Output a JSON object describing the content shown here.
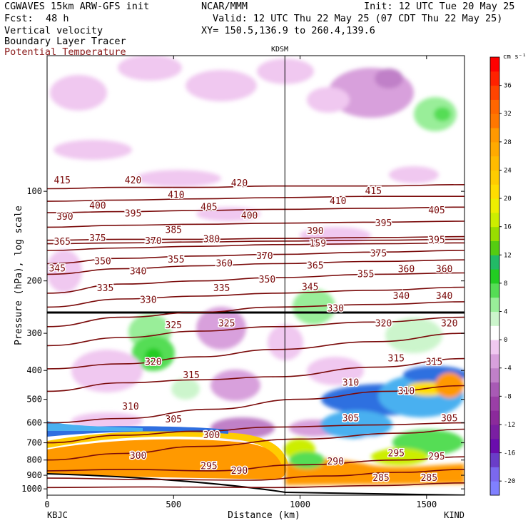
{
  "header": {
    "model": "CGWAVES 15km ARW-GFS init",
    "org": "NCAR/MMM",
    "init": "Init: 12 UTC Tue 20 May 25",
    "fcst_label": "Fcst:",
    "fcst_value": "48 h",
    "valid": "Valid: 12 UTC Thu 22 May 25 (07 CDT Thu 22 May 25)",
    "field1": "Vertical velocity",
    "xy": "XY= 150.5,136.9 to 260.4,139.6",
    "field2": "Boundary Layer Tracer",
    "field3": "Potential Temperature",
    "field3_color": "#8b1a1a",
    "station_mid": "KDSM",
    "station_left": "KBJC",
    "station_right": "KIND"
  },
  "chart_data": {
    "type": "heatmap",
    "title": "Vertical velocity / Boundary Layer Tracer / Potential Temperature cross-section",
    "xlabel": "Distance (km)",
    "ylabel": "Pressure (hPa), log scale",
    "xlim": [
      0,
      1650
    ],
    "ylim": [
      1050,
      35
    ],
    "x_ticks": [
      0,
      500,
      1000,
      1500
    ],
    "y_ticks": [
      100,
      200,
      300,
      400,
      500,
      600,
      700,
      800,
      900,
      1000
    ],
    "marker_line_x": 940,
    "colorbar": {
      "unit_label": "cm s⁻¹",
      "levels": [
        -22,
        -20,
        -18,
        -16,
        -14,
        -12,
        -10,
        -8,
        -6,
        -4,
        -2,
        2,
        4,
        6,
        8,
        10,
        12,
        14,
        16,
        18,
        20,
        22,
        24,
        26,
        28,
        30,
        32,
        34,
        36,
        38,
        40
      ],
      "colors": [
        "#8080ff",
        "#7b68ee",
        "#6a3dc8",
        "#6a0dad",
        "#7a1fa2",
        "#8b2a9b",
        "#9a3fa6",
        "#a85ab5",
        "#c080c8",
        "#d8a0dc",
        "#f0c8f0",
        "#ffffff",
        "#ccf5cc",
        "#99ee99",
        "#55dd55",
        "#22cc22",
        "#22bb66",
        "#55cc11",
        "#99dd00",
        "#ccee00",
        "#eeee00",
        "#ffdd00",
        "#ffcc00",
        "#ffbb00",
        "#ffaa00",
        "#ff9900",
        "#ff7700",
        "#ff6600",
        "#ff4400",
        "#ff2200",
        "#ff0000"
      ],
      "tick_labels": [
        "-20",
        "-16",
        "-12",
        "-8",
        "-4",
        "0",
        "4",
        "8",
        "12",
        "16",
        "20",
        "24",
        "28",
        "32",
        "36"
      ]
    },
    "theta_contours": [
      {
        "theta": 285,
        "points": [
          [
            0,
            990
          ],
          [
            400,
            985
          ],
          [
            900,
            990
          ],
          [
            1300,
            975
          ],
          [
            1650,
            955
          ]
        ]
      },
      {
        "theta": 290,
        "points": [
          [
            0,
            920
          ],
          [
            400,
            930
          ],
          [
            800,
            935
          ],
          [
            1100,
            905
          ],
          [
            1400,
            880
          ],
          [
            1650,
            860
          ]
        ]
      },
      {
        "theta": 295,
        "points": [
          [
            0,
            870
          ],
          [
            300,
            860
          ],
          [
            650,
            870
          ],
          [
            1000,
            830
          ],
          [
            1400,
            800
          ],
          [
            1650,
            780
          ]
        ]
      },
      {
        "theta": 300,
        "points": [
          [
            0,
            800
          ],
          [
            300,
            760
          ],
          [
            600,
            720
          ],
          [
            1000,
            680
          ],
          [
            1400,
            650
          ],
          [
            1650,
            630
          ]
        ]
      },
      {
        "theta": 305,
        "points": [
          [
            0,
            700
          ],
          [
            300,
            660
          ],
          [
            600,
            640
          ],
          [
            900,
            620
          ],
          [
            1300,
            610
          ],
          [
            1650,
            600
          ]
        ]
      },
      {
        "theta": 310,
        "points": [
          [
            0,
            600
          ],
          [
            300,
            580
          ],
          [
            650,
            540
          ],
          [
            1000,
            500
          ],
          [
            1350,
            470
          ],
          [
            1650,
            450
          ]
        ]
      },
      {
        "theta": 315,
        "points": [
          [
            0,
            470
          ],
          [
            300,
            440
          ],
          [
            600,
            430
          ],
          [
            900,
            420
          ],
          [
            1300,
            390
          ],
          [
            1650,
            365
          ]
        ]
      },
      {
        "theta": 320,
        "points": [
          [
            0,
            395
          ],
          [
            300,
            380
          ],
          [
            600,
            360
          ],
          [
            900,
            340
          ],
          [
            1300,
            320
          ],
          [
            1650,
            300
          ]
        ]
      },
      {
        "theta": 325,
        "points": [
          [
            0,
            330
          ],
          [
            300,
            310
          ],
          [
            600,
            295
          ],
          [
            900,
            285
          ],
          [
            1300,
            275
          ],
          [
            1650,
            265
          ]
        ]
      },
      {
        "theta": 330,
        "points": [
          [
            0,
            285
          ],
          [
            300,
            265
          ],
          [
            600,
            255
          ],
          [
            900,
            245
          ],
          [
            1300,
            240
          ],
          [
            1650,
            235
          ]
        ]
      },
      {
        "theta": 335,
        "points": [
          [
            0,
            245
          ],
          [
            300,
            230
          ],
          [
            600,
            225
          ],
          [
            900,
            220
          ],
          [
            1300,
            215
          ],
          [
            1650,
            210
          ]
        ]
      },
      {
        "theta": 340,
        "points": [
          [
            0,
            220
          ],
          [
            300,
            205
          ],
          [
            600,
            200
          ],
          [
            900,
            195
          ],
          [
            1300,
            190
          ],
          [
            1650,
            188
          ]
        ]
      },
      {
        "theta": 345,
        "points": [
          [
            0,
            190
          ],
          [
            300,
            182
          ],
          [
            600,
            178
          ],
          [
            900,
            175
          ],
          [
            1300,
            172
          ],
          [
            1650,
            170
          ]
        ]
      },
      {
        "theta": 350,
        "points": [
          [
            0,
            175
          ],
          [
            300,
            168
          ],
          [
            600,
            165
          ],
          [
            900,
            163
          ],
          [
            1300,
            160
          ],
          [
            1650,
            158
          ]
        ]
      },
      {
        "theta": 360,
        "points": [
          [
            0,
            158
          ],
          [
            300,
            155
          ],
          [
            600,
            153
          ],
          [
            900,
            151
          ],
          [
            1300,
            150
          ],
          [
            1650,
            149
          ]
        ]
      },
      {
        "theta": 370,
        "points": [
          [
            0,
            150
          ],
          [
            300,
            149
          ],
          [
            600,
            148
          ],
          [
            900,
            147
          ],
          [
            1300,
            146
          ],
          [
            1650,
            145
          ]
        ]
      },
      {
        "theta": 380,
        "points": [
          [
            0,
            146
          ],
          [
            300,
            145
          ],
          [
            600,
            145
          ],
          [
            900,
            144
          ],
          [
            1300,
            143
          ],
          [
            1650,
            142
          ]
        ]
      },
      {
        "theta": 390,
        "points": [
          [
            0,
            132
          ],
          [
            300,
            130
          ],
          [
            600,
            129
          ],
          [
            900,
            128
          ],
          [
            1300,
            127
          ],
          [
            1650,
            126
          ]
        ]
      },
      {
        "theta": 400,
        "points": [
          [
            0,
            118
          ],
          [
            300,
            117
          ],
          [
            600,
            116
          ],
          [
            900,
            115
          ],
          [
            1300,
            114
          ],
          [
            1650,
            113
          ]
        ]
      },
      {
        "theta": 410,
        "points": [
          [
            0,
            108
          ],
          [
            300,
            107
          ],
          [
            600,
            106
          ],
          [
            900,
            105
          ],
          [
            1300,
            104
          ],
          [
            1650,
            104
          ]
        ]
      },
      {
        "theta": 420,
        "points": [
          [
            0,
            98
          ],
          [
            300,
            97
          ],
          [
            600,
            97
          ],
          [
            900,
            96
          ],
          [
            1300,
            96
          ],
          [
            1650,
            95
          ]
        ]
      }
    ],
    "contour_labels": [
      {
        "text": "415",
        "x": 60,
        "p": 92
      },
      {
        "text": "420",
        "x": 340,
        "p": 92
      },
      {
        "text": "420",
        "x": 760,
        "p": 94
      },
      {
        "text": "415",
        "x": 1290,
        "p": 100
      },
      {
        "text": "400",
        "x": 200,
        "p": 112
      },
      {
        "text": "410",
        "x": 510,
        "p": 103
      },
      {
        "text": "405",
        "x": 640,
        "p": 113
      },
      {
        "text": "410",
        "x": 1150,
        "p": 108
      },
      {
        "text": "405",
        "x": 1540,
        "p": 116
      },
      {
        "text": "390",
        "x": 70,
        "p": 122
      },
      {
        "text": "395",
        "x": 340,
        "p": 119
      },
      {
        "text": "400",
        "x": 800,
        "p": 121
      },
      {
        "text": "395",
        "x": 1330,
        "p": 128
      },
      {
        "text": "385",
        "x": 500,
        "p": 135
      },
      {
        "text": "390",
        "x": 1060,
        "p": 136
      },
      {
        "text": "380",
        "x": 650,
        "p": 145
      },
      {
        "text": "375",
        "x": 200,
        "p": 144
      },
      {
        "text": "370",
        "x": 420,
        "p": 147
      },
      {
        "text": "365",
        "x": 60,
        "p": 148
      },
      {
        "text": "395",
        "x": 1540,
        "p": 146
      },
      {
        "text": "370",
        "x": 860,
        "p": 165
      },
      {
        "text": "375",
        "x": 1310,
        "p": 162
      },
      {
        "text": "360",
        "x": 700,
        "p": 175
      },
      {
        "text": "365",
        "x": 1060,
        "p": 178
      },
      {
        "text": "345",
        "x": 40,
        "p": 182
      },
      {
        "text": "350",
        "x": 220,
        "p": 172
      },
      {
        "text": "355",
        "x": 510,
        "p": 170
      },
      {
        "text": "340",
        "x": 360,
        "p": 186
      },
      {
        "text": "355",
        "x": 1260,
        "p": 190
      },
      {
        "text": "360",
        "x": 1420,
        "p": 183
      },
      {
        "text": "360",
        "x": 1570,
        "p": 183
      },
      {
        "text": "350",
        "x": 870,
        "p": 198
      },
      {
        "text": "345",
        "x": 1040,
        "p": 210
      },
      {
        "text": "335",
        "x": 230,
        "p": 212
      },
      {
        "text": "335",
        "x": 690,
        "p": 212
      },
      {
        "text": "340",
        "x": 1400,
        "p": 225
      },
      {
        "text": "340",
        "x": 1570,
        "p": 225
      },
      {
        "text": "330",
        "x": 400,
        "p": 232
      },
      {
        "text": "330",
        "x": 1140,
        "p": 248
      },
      {
        "text": "325",
        "x": 500,
        "p": 282
      },
      {
        "text": "325",
        "x": 710,
        "p": 278
      },
      {
        "text": "320",
        "x": 1330,
        "p": 278
      },
      {
        "text": "320",
        "x": 1590,
        "p": 278
      },
      {
        "text": "320",
        "x": 420,
        "p": 375
      },
      {
        "text": "315",
        "x": 1380,
        "p": 365
      },
      {
        "text": "315",
        "x": 1530,
        "p": 375
      },
      {
        "text": "315",
        "x": 570,
        "p": 415
      },
      {
        "text": "310",
        "x": 1200,
        "p": 440
      },
      {
        "text": "310",
        "x": 1420,
        "p": 470
      },
      {
        "text": "310",
        "x": 330,
        "p": 530
      },
      {
        "text": "305",
        "x": 500,
        "p": 585
      },
      {
        "text": "305",
        "x": 1200,
        "p": 580
      },
      {
        "text": "305",
        "x": 1590,
        "p": 580
      },
      {
        "text": "300",
        "x": 650,
        "p": 660
      },
      {
        "text": "300",
        "x": 360,
        "p": 775
      },
      {
        "text": "295",
        "x": 1380,
        "p": 760
      },
      {
        "text": "295",
        "x": 1540,
        "p": 780
      },
      {
        "text": "290",
        "x": 1140,
        "p": 810
      },
      {
        "text": "290",
        "x": 760,
        "p": 870
      },
      {
        "text": "295",
        "x": 640,
        "p": 840
      },
      {
        "text": "285",
        "x": 1320,
        "p": 920
      },
      {
        "text": "285",
        "x": 1510,
        "p": 920
      },
      {
        "text": "159",
        "x": 1070,
        "p": 150
      },
      {
        "text": "395",
        "x": 1540,
        "p": 146
      }
    ]
  }
}
